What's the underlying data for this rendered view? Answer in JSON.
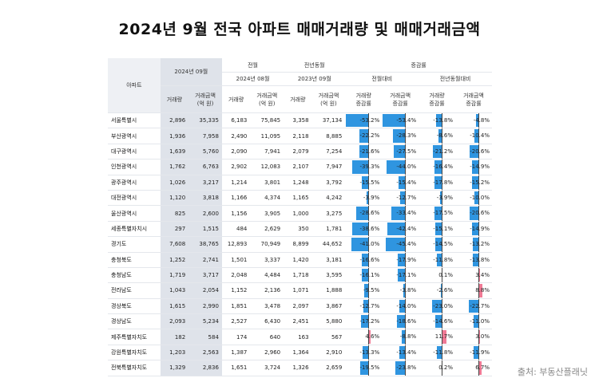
{
  "title": "2024년 9월 전국 아파트 매매거래량 및 매매거래금액",
  "header": {
    "apartment": "아파트",
    "current_period": "2024년 09월",
    "prev_month": "전월",
    "prev_year": "전년동월",
    "change_rate": "증감률",
    "prev_month_period": "2024년 08월",
    "prev_year_period": "2023년 09월",
    "vs_prev_month": "전월대비",
    "vs_prev_year": "전년동월대비",
    "col_volume": "거래량",
    "col_amount": "거래금액\n(억 원)",
    "col_volume_change": "거래량\n증감률",
    "col_amount_change": "거래금액\n증감률"
  },
  "rows": [
    {
      "region": "서울특별시",
      "vol": "2,896",
      "amt": "35,335",
      "pm_vol": "6,183",
      "pm_amt": "75,845",
      "py_vol": "3,358",
      "py_amt": "37,134",
      "pm_vol_chg": "-53.2%",
      "pm_amt_chg": "-53.4%",
      "py_vol_chg": "-13.8%",
      "py_amt_chg": "-4.8%",
      "v1": -53.2,
      "v2": -53.4,
      "v3": -13.8,
      "v4": -4.8
    },
    {
      "region": "부산광역시",
      "vol": "1,936",
      "amt": "7,958",
      "pm_vol": "2,490",
      "pm_amt": "11,095",
      "py_vol": "2,118",
      "py_amt": "8,885",
      "pm_vol_chg": "-22.2%",
      "pm_amt_chg": "-28.3%",
      "py_vol_chg": "-8.6%",
      "py_amt_chg": "-10.4%",
      "v1": -22.2,
      "v2": -28.3,
      "v3": -8.6,
      "v4": -10.4
    },
    {
      "region": "대구광역시",
      "vol": "1,639",
      "amt": "5,760",
      "pm_vol": "2,090",
      "pm_amt": "7,941",
      "py_vol": "2,079",
      "py_amt": "7,254",
      "pm_vol_chg": "-21.6%",
      "pm_amt_chg": "-27.5%",
      "py_vol_chg": "-21.2%",
      "py_amt_chg": "-20.6%",
      "v1": -21.6,
      "v2": -27.5,
      "v3": -21.2,
      "v4": -20.6
    },
    {
      "region": "인천광역시",
      "vol": "1,762",
      "amt": "6,763",
      "pm_vol": "2,902",
      "pm_amt": "12,083",
      "py_vol": "2,107",
      "py_amt": "7,947",
      "pm_vol_chg": "-39.3%",
      "pm_amt_chg": "-44.0%",
      "py_vol_chg": "-16.4%",
      "py_amt_chg": "-14.9%",
      "v1": -39.3,
      "v2": -44.0,
      "v3": -16.4,
      "v4": -14.9
    },
    {
      "region": "광주광역시",
      "vol": "1,026",
      "amt": "3,217",
      "pm_vol": "1,214",
      "pm_amt": "3,801",
      "py_vol": "1,248",
      "py_amt": "3,792",
      "pm_vol_chg": "-15.5%",
      "pm_amt_chg": "-15.4%",
      "py_vol_chg": "-17.8%",
      "py_amt_chg": "-15.2%",
      "v1": -15.5,
      "v2": -15.4,
      "v3": -17.8,
      "v4": -15.2
    },
    {
      "region": "대전광역시",
      "vol": "1,120",
      "amt": "3,818",
      "pm_vol": "1,166",
      "pm_amt": "4,374",
      "py_vol": "1,165",
      "py_amt": "4,242",
      "pm_vol_chg": "-3.9%",
      "pm_amt_chg": "-12.7%",
      "py_vol_chg": "-3.9%",
      "py_amt_chg": "-10.0%",
      "v1": -3.9,
      "v2": -12.7,
      "v3": -3.9,
      "v4": -10.0
    },
    {
      "region": "울산광역시",
      "vol": "825",
      "amt": "2,600",
      "pm_vol": "1,156",
      "pm_amt": "3,905",
      "py_vol": "1,000",
      "py_amt": "3,275",
      "pm_vol_chg": "-28.6%",
      "pm_amt_chg": "-33.4%",
      "py_vol_chg": "-17.5%",
      "py_amt_chg": "-20.6%",
      "v1": -28.6,
      "v2": -33.4,
      "v3": -17.5,
      "v4": -20.6
    },
    {
      "region": "세종특별자치시",
      "vol": "297",
      "amt": "1,515",
      "pm_vol": "484",
      "pm_amt": "2,629",
      "py_vol": "350",
      "py_amt": "1,781",
      "pm_vol_chg": "-38.6%",
      "pm_amt_chg": "-42.4%",
      "py_vol_chg": "-15.1%",
      "py_amt_chg": "-14.9%",
      "v1": -38.6,
      "v2": -42.4,
      "v3": -15.1,
      "v4": -14.9
    },
    {
      "region": "경기도",
      "vol": "7,608",
      "amt": "38,765",
      "pm_vol": "12,893",
      "pm_amt": "70,949",
      "py_vol": "8,899",
      "py_amt": "44,652",
      "pm_vol_chg": "-41.0%",
      "pm_amt_chg": "-45.4%",
      "py_vol_chg": "-14.5%",
      "py_amt_chg": "-13.2%",
      "v1": -41.0,
      "v2": -45.4,
      "v3": -14.5,
      "v4": -13.2
    },
    {
      "region": "충청북도",
      "vol": "1,252",
      "amt": "2,741",
      "pm_vol": "1,501",
      "pm_amt": "3,337",
      "py_vol": "1,420",
      "py_amt": "3,181",
      "pm_vol_chg": "-16.6%",
      "pm_amt_chg": "-17.9%",
      "py_vol_chg": "-11.8%",
      "py_amt_chg": "-13.8%",
      "v1": -16.6,
      "v2": -17.9,
      "v3": -11.8,
      "v4": -13.8
    },
    {
      "region": "충청남도",
      "vol": "1,719",
      "amt": "3,717",
      "pm_vol": "2,048",
      "pm_amt": "4,484",
      "py_vol": "1,718",
      "py_amt": "3,595",
      "pm_vol_chg": "-16.1%",
      "pm_amt_chg": "-17.1%",
      "py_vol_chg": "0.1%",
      "py_amt_chg": "3.4%",
      "v1": -16.1,
      "v2": -17.1,
      "v3": 0.1,
      "v4": 3.4
    },
    {
      "region": "전라남도",
      "vol": "1,043",
      "amt": "2,054",
      "pm_vol": "1,152",
      "pm_amt": "2,136",
      "py_vol": "1,071",
      "py_amt": "1,888",
      "pm_vol_chg": "-9.5%",
      "pm_amt_chg": "-3.8%",
      "py_vol_chg": "-2.6%",
      "py_amt_chg": "8.8%",
      "v1": -9.5,
      "v2": -3.8,
      "v3": -2.6,
      "v4": 8.8
    },
    {
      "region": "경상북도",
      "vol": "1,615",
      "amt": "2,990",
      "pm_vol": "1,851",
      "pm_amt": "3,478",
      "py_vol": "2,097",
      "py_amt": "3,867",
      "pm_vol_chg": "-12.7%",
      "pm_amt_chg": "-14.0%",
      "py_vol_chg": "-23.0%",
      "py_amt_chg": "-22.7%",
      "v1": -12.7,
      "v2": -14.0,
      "v3": -23.0,
      "v4": -22.7
    },
    {
      "region": "경상남도",
      "vol": "2,093",
      "amt": "5,234",
      "pm_vol": "2,527",
      "pm_amt": "6,430",
      "py_vol": "2,451",
      "py_amt": "5,880",
      "pm_vol_chg": "-17.2%",
      "pm_amt_chg": "-18.6%",
      "py_vol_chg": "-14.6%",
      "py_amt_chg": "-11.0%",
      "v1": -17.2,
      "v2": -18.6,
      "v3": -14.6,
      "v4": -11.0
    },
    {
      "region": "제주특별자치도",
      "vol": "182",
      "amt": "584",
      "pm_vol": "174",
      "pm_amt": "640",
      "py_vol": "163",
      "py_amt": "567",
      "pm_vol_chg": "4.6%",
      "pm_amt_chg": "-8.8%",
      "py_vol_chg": "11.7%",
      "py_amt_chg": "3.0%",
      "v1": 4.6,
      "v2": -8.8,
      "v3": 11.7,
      "v4": 3.0
    },
    {
      "region": "강원특별자치도",
      "vol": "1,203",
      "amt": "2,563",
      "pm_vol": "1,387",
      "pm_amt": "2,960",
      "py_vol": "1,364",
      "py_amt": "2,910",
      "pm_vol_chg": "-13.3%",
      "pm_amt_chg": "-13.4%",
      "py_vol_chg": "-11.8%",
      "py_amt_chg": "-11.9%",
      "v1": -13.3,
      "v2": -13.4,
      "v3": -11.8,
      "v4": -11.9
    },
    {
      "region": "전북특별자치도",
      "vol": "1,329",
      "amt": "2,836",
      "pm_vol": "1,651",
      "pm_amt": "3,724",
      "py_vol": "1,326",
      "py_amt": "2,659",
      "pm_vol_chg": "-19.5%",
      "pm_amt_chg": "-23.8%",
      "py_vol_chg": "0.2%",
      "py_amt_chg": "6.7%",
      "v1": -19.5,
      "v2": -23.8,
      "v3": 0.2,
      "v4": 6.7
    }
  ],
  "source": "출처: 부동산플래닛",
  "colors": {
    "negative": "#2f95e0",
    "positive": "#f07a95",
    "header_gray": "#dfe3ea"
  }
}
